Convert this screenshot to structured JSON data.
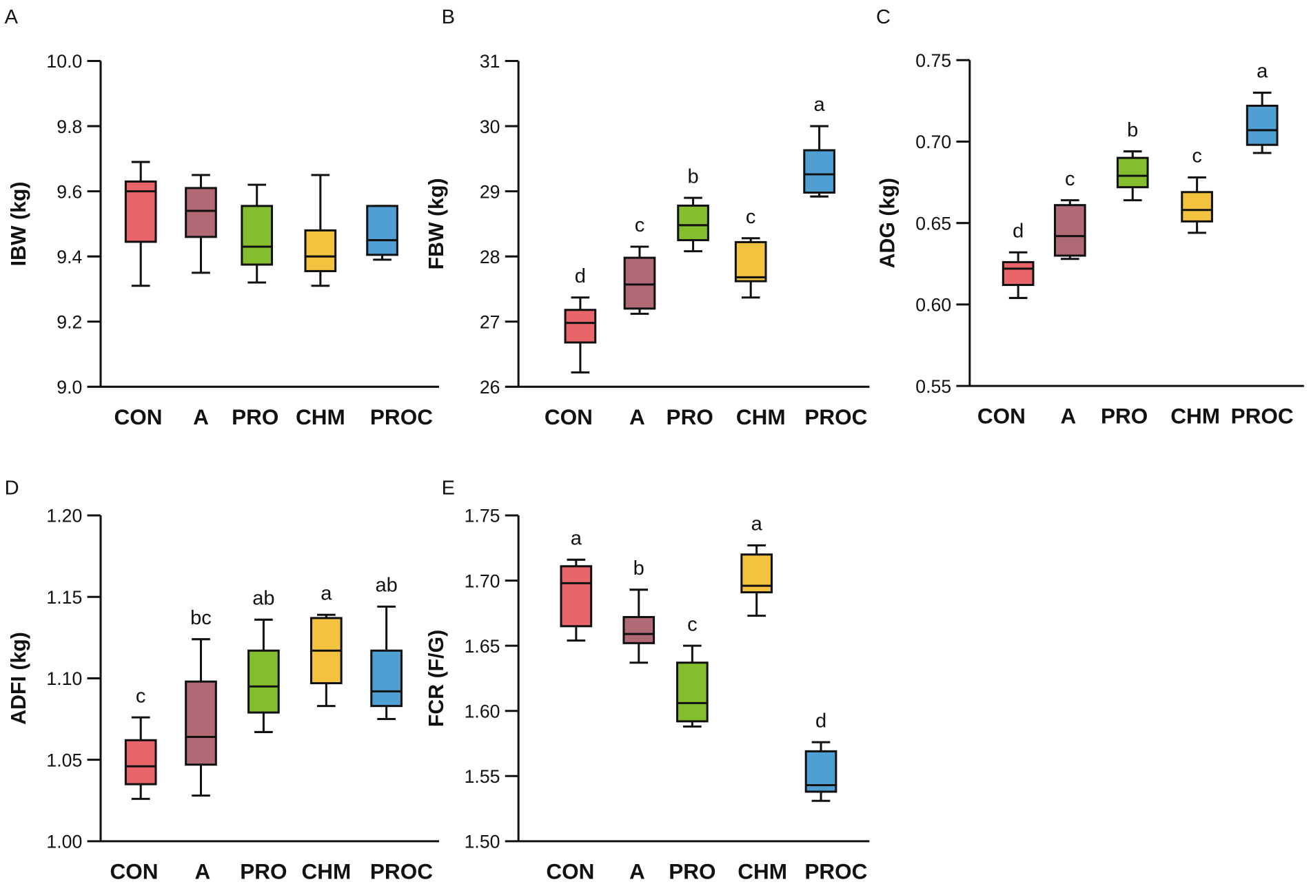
{
  "chart_data": [
    {
      "type": "box",
      "panel": "A",
      "ylabel": "IBW (kg)",
      "ylim": [
        9.0,
        10.0
      ],
      "yticks": [
        "9.0",
        "9.2",
        "9.4",
        "9.6",
        "9.8",
        "10.0"
      ],
      "ytick_values": [
        9.0,
        9.2,
        9.4,
        9.6,
        9.8,
        10.0
      ],
      "categories": [
        "CON",
        "A",
        "PRO",
        "CHM",
        "PROC"
      ],
      "boxes": [
        {
          "min": 9.31,
          "q1": 9.445,
          "median": 9.6,
          "q3": 9.63,
          "max": 9.69
        },
        {
          "min": 9.35,
          "q1": 9.46,
          "median": 9.54,
          "q3": 9.61,
          "max": 9.65
        },
        {
          "min": 9.32,
          "q1": 9.375,
          "median": 9.43,
          "q3": 9.555,
          "max": 9.62
        },
        {
          "min": 9.31,
          "q1": 9.355,
          "median": 9.4,
          "q3": 9.48,
          "max": 9.65
        },
        {
          "min": 9.39,
          "q1": 9.405,
          "median": 9.45,
          "q3": 9.555,
          "max": 9.555
        }
      ],
      "letters": []
    },
    {
      "type": "box",
      "panel": "B",
      "ylabel": "FBW (kg)",
      "ylim": [
        26,
        31
      ],
      "yticks": [
        "26",
        "27",
        "28",
        "29",
        "30",
        "31"
      ],
      "ytick_values": [
        26,
        27,
        28,
        29,
        30,
        31
      ],
      "categories": [
        "CON",
        "A",
        "PRO",
        "CHM",
        "PROC"
      ],
      "boxes": [
        {
          "min": 26.22,
          "q1": 26.68,
          "median": 26.98,
          "q3": 27.18,
          "max": 27.37
        },
        {
          "min": 27.12,
          "q1": 27.2,
          "median": 27.57,
          "q3": 27.98,
          "max": 28.15
        },
        {
          "min": 28.08,
          "q1": 28.25,
          "median": 28.48,
          "q3": 28.78,
          "max": 28.9
        },
        {
          "min": 27.37,
          "q1": 27.62,
          "median": 27.68,
          "q3": 28.22,
          "max": 28.28
        },
        {
          "min": 28.92,
          "q1": 28.98,
          "median": 29.26,
          "q3": 29.63,
          "max": 30.0
        }
      ],
      "letters": [
        "d",
        "c",
        "b",
        "c",
        "a"
      ]
    },
    {
      "type": "box",
      "panel": "C",
      "ylabel": "ADG (kg)",
      "ylim": [
        0.55,
        0.75
      ],
      "yticks": [
        "0.55",
        "0.60",
        "0.65",
        "0.70",
        "0.75"
      ],
      "ytick_values": [
        0.55,
        0.6,
        0.65,
        0.7,
        0.75
      ],
      "categories": [
        "CON",
        "A",
        "PRO",
        "CHM",
        "PROC"
      ],
      "boxes": [
        {
          "min": 0.604,
          "q1": 0.612,
          "median": 0.622,
          "q3": 0.626,
          "max": 0.632
        },
        {
          "min": 0.628,
          "q1": 0.63,
          "median": 0.642,
          "q3": 0.661,
          "max": 0.664
        },
        {
          "min": 0.664,
          "q1": 0.672,
          "median": 0.679,
          "q3": 0.69,
          "max": 0.694
        },
        {
          "min": 0.644,
          "q1": 0.651,
          "median": 0.658,
          "q3": 0.669,
          "max": 0.678
        },
        {
          "min": 0.693,
          "q1": 0.698,
          "median": 0.707,
          "q3": 0.722,
          "max": 0.73
        }
      ],
      "letters": [
        "d",
        "c",
        "b",
        "c",
        "a"
      ]
    },
    {
      "type": "box",
      "panel": "D",
      "ylabel": "ADFI (kg)",
      "ylim": [
        1.0,
        1.2
      ],
      "yticks": [
        "1.00",
        "1.05",
        "1.10",
        "1.15",
        "1.20"
      ],
      "ytick_values": [
        1.0,
        1.05,
        1.1,
        1.15,
        1.2
      ],
      "categories": [
        "CON",
        "A",
        "PRO",
        "CHM",
        "PROC"
      ],
      "boxes": [
        {
          "min": 1.026,
          "q1": 1.035,
          "median": 1.046,
          "q3": 1.062,
          "max": 1.076
        },
        {
          "min": 1.028,
          "q1": 1.047,
          "median": 1.064,
          "q3": 1.098,
          "max": 1.124
        },
        {
          "min": 1.067,
          "q1": 1.079,
          "median": 1.095,
          "q3": 1.117,
          "max": 1.136
        },
        {
          "min": 1.083,
          "q1": 1.097,
          "median": 1.117,
          "q3": 1.137,
          "max": 1.139
        },
        {
          "min": 1.075,
          "q1": 1.083,
          "median": 1.092,
          "q3": 1.117,
          "max": 1.144
        }
      ],
      "letters": [
        "c",
        "bc",
        "ab",
        "a",
        "ab"
      ]
    },
    {
      "type": "box",
      "panel": "E",
      "ylabel": "FCR (F/G)",
      "ylim": [
        1.5,
        1.75
      ],
      "yticks": [
        "1.50",
        "1.55",
        "1.60",
        "1.65",
        "1.70",
        "1.75"
      ],
      "ytick_values": [
        1.5,
        1.55,
        1.6,
        1.65,
        1.7,
        1.75
      ],
      "categories": [
        "CON",
        "A",
        "PRO",
        "CHM",
        "PROC"
      ],
      "boxes": [
        {
          "min": 1.654,
          "q1": 1.665,
          "median": 1.698,
          "q3": 1.711,
          "max": 1.716
        },
        {
          "min": 1.637,
          "q1": 1.652,
          "median": 1.659,
          "q3": 1.672,
          "max": 1.693
        },
        {
          "min": 1.588,
          "q1": 1.592,
          "median": 1.606,
          "q3": 1.637,
          "max": 1.65
        },
        {
          "min": 1.673,
          "q1": 1.691,
          "median": 1.696,
          "q3": 1.72,
          "max": 1.727
        },
        {
          "min": 1.531,
          "q1": 1.538,
          "median": 1.543,
          "q3": 1.569,
          "max": 1.576
        }
      ],
      "letters": [
        "a",
        "b",
        "c",
        "a",
        "d"
      ]
    }
  ],
  "colors": [
    "#e8666a",
    "#b06a76",
    "#84bd2d",
    "#f3c23f",
    "#4f9fd2"
  ]
}
